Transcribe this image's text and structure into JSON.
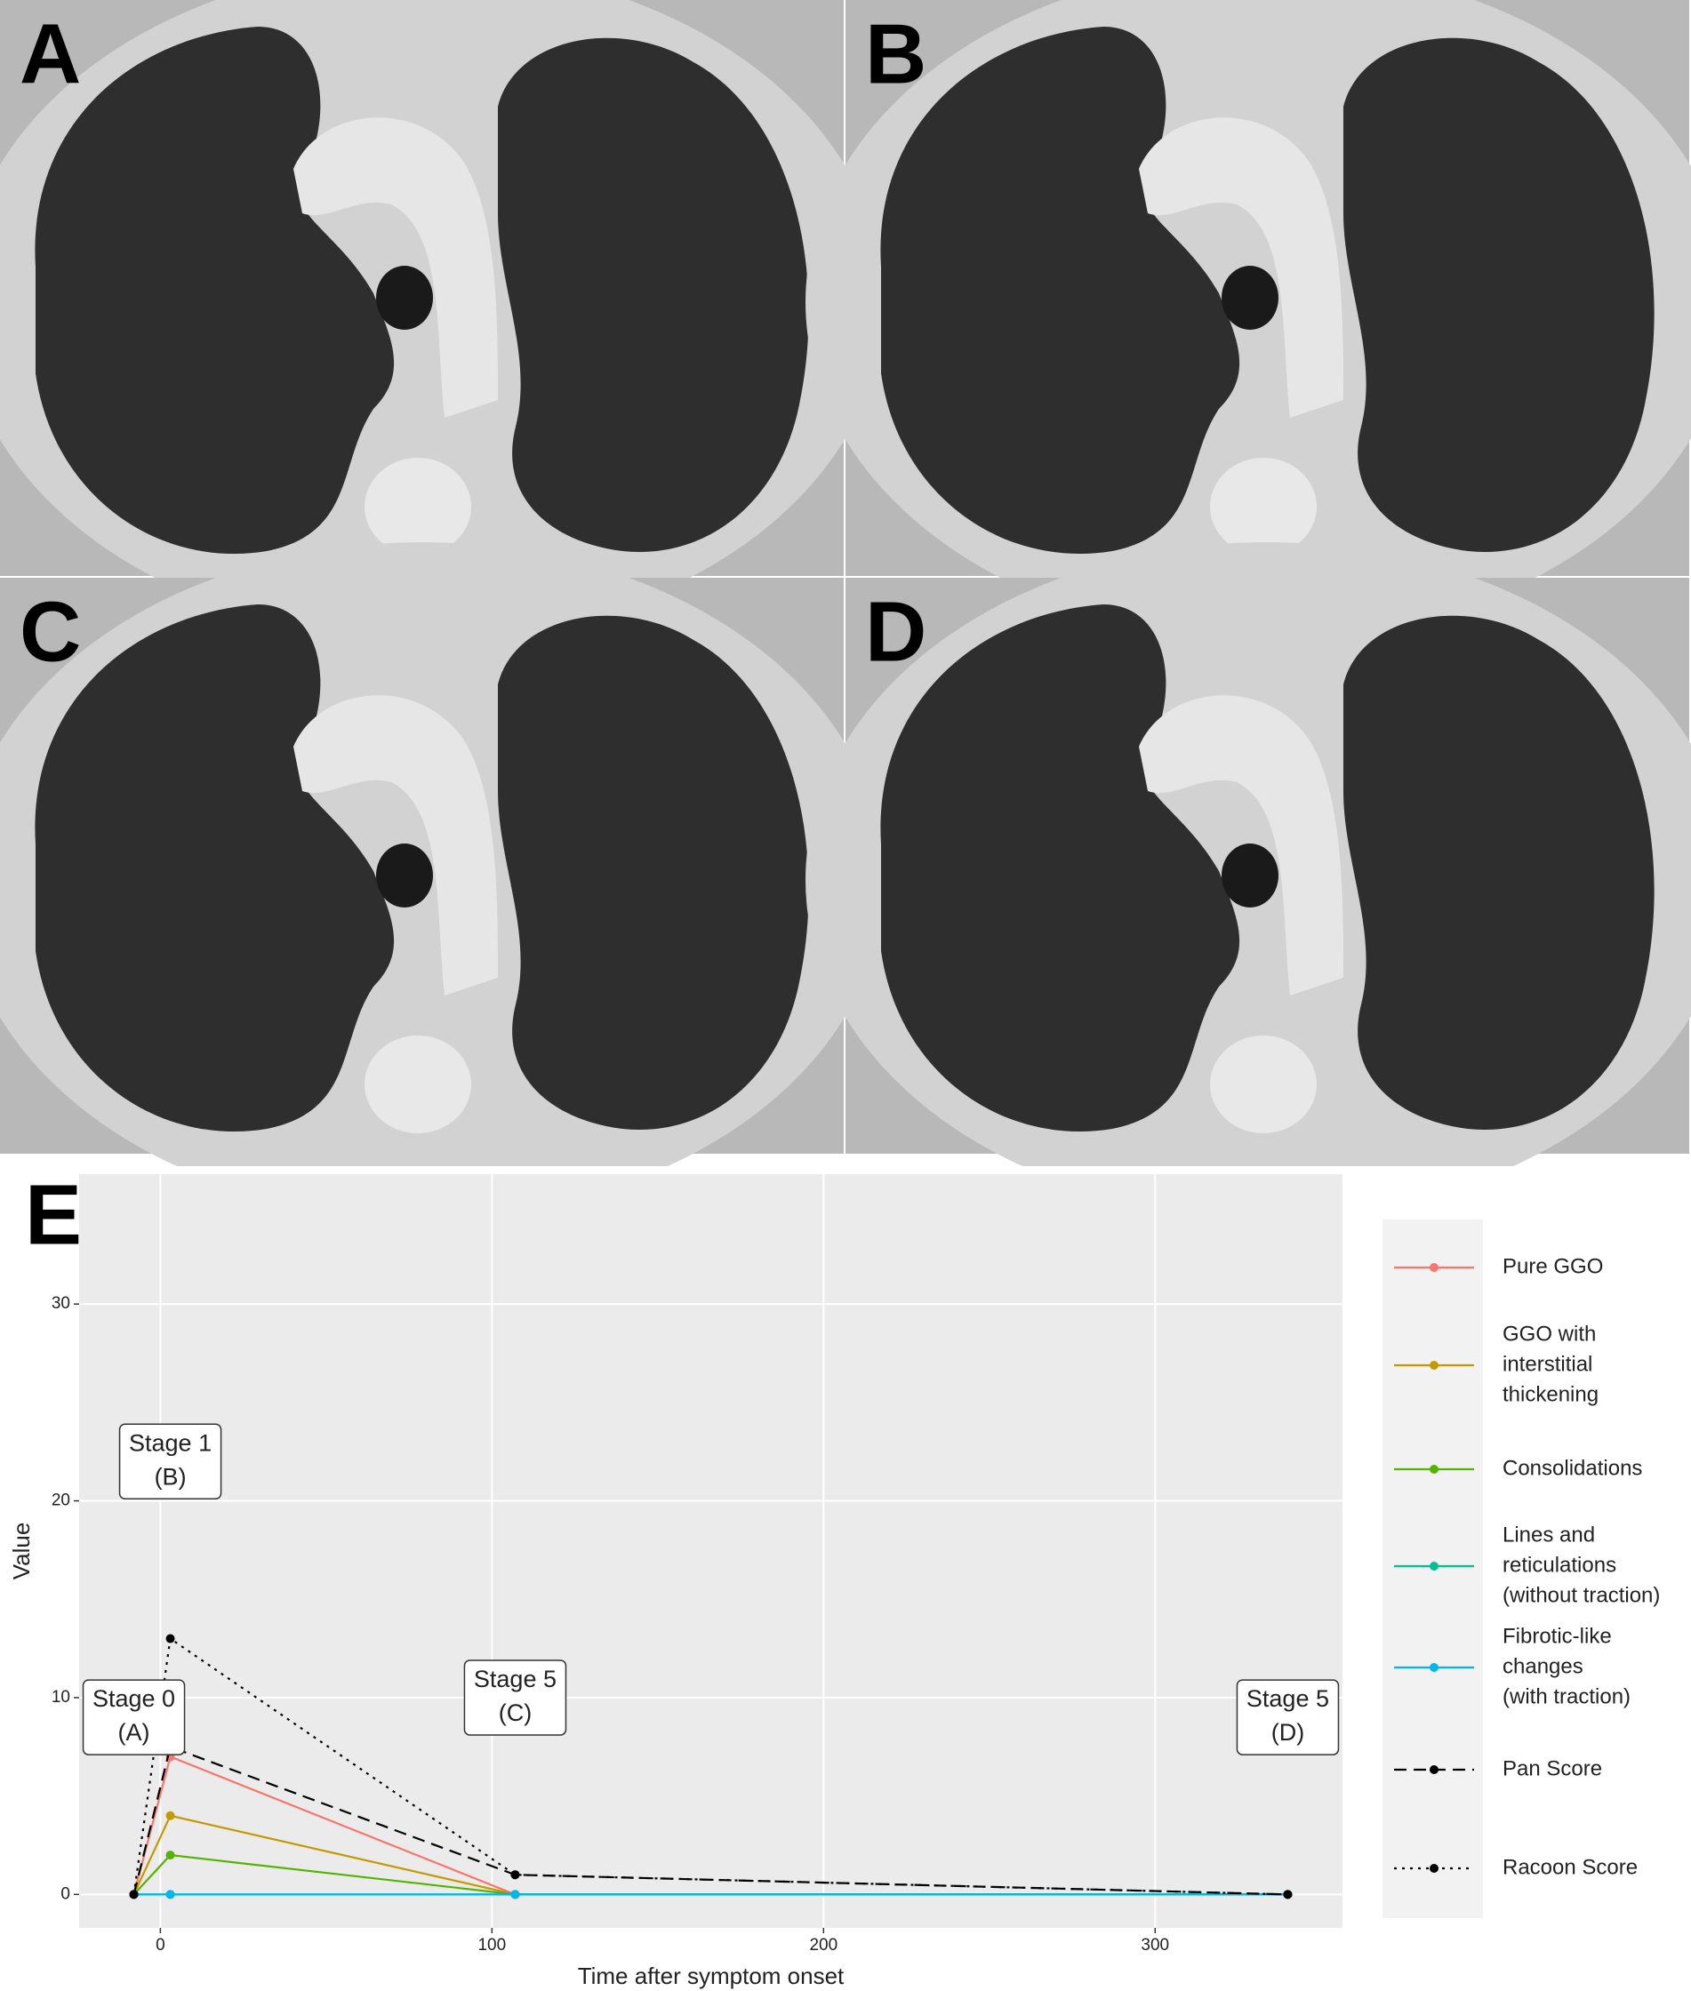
{
  "panels": [
    {
      "label": "A"
    },
    {
      "label": "B"
    },
    {
      "label": "C"
    },
    {
      "label": "D"
    }
  ],
  "chart_data": {
    "type": "line",
    "label": "E",
    "x_label": "Time after symptom onset",
    "y_label": "Value",
    "x": [
      -8,
      3,
      107,
      340
    ],
    "xlim": [
      -24.5,
      356.5
    ],
    "ylim": [
      -1.7,
      36.6
    ],
    "xticks": [
      0,
      100,
      200,
      300
    ],
    "yticks": [
      0,
      10,
      20,
      30
    ],
    "grid": true,
    "legend": "right",
    "series": [
      {
        "name": [
          "Pure GGO"
        ],
        "color": "#F8766D",
        "linestyle": "solid",
        "values": [
          0,
          7,
          0,
          0
        ]
      },
      {
        "name": [
          "GGO with",
          "interstitial",
          "thickening"
        ],
        "color": "#C49A00",
        "linestyle": "solid",
        "values": [
          0,
          4,
          0,
          0
        ]
      },
      {
        "name": [
          "Consolidations"
        ],
        "color": "#53B400",
        "linestyle": "solid",
        "values": [
          0,
          2,
          0,
          0
        ]
      },
      {
        "name": [
          "Lines and",
          "reticulations",
          "(without traction)"
        ],
        "color": "#00C094",
        "linestyle": "solid",
        "values": [
          0,
          0,
          0,
          0
        ]
      },
      {
        "name": [
          "Fibrotic-like",
          "changes",
          "(with traction)"
        ],
        "color": "#00B6EB",
        "linestyle": "solid",
        "values": [
          0,
          0,
          0,
          0
        ]
      },
      {
        "name": [
          "Pan Score"
        ],
        "color": "#000000",
        "linestyle": "dashed",
        "values": [
          0,
          7.5,
          1,
          0
        ]
      },
      {
        "name": [
          "Racoon Score"
        ],
        "color": "#000000",
        "linestyle": "dotted",
        "values": [
          0,
          13,
          1,
          0
        ]
      }
    ],
    "annotations": [
      {
        "text": [
          "Stage 0",
          "(A)"
        ],
        "x": -8,
        "y": 9
      },
      {
        "text": [
          "Stage 1",
          "(B)"
        ],
        "x": 3,
        "y": 22
      },
      {
        "text": [
          "Stage 5",
          "(C)"
        ],
        "x": 107,
        "y": 10
      },
      {
        "text": [
          "Stage 5",
          "(D)"
        ],
        "x": 340,
        "y": 9
      }
    ]
  }
}
